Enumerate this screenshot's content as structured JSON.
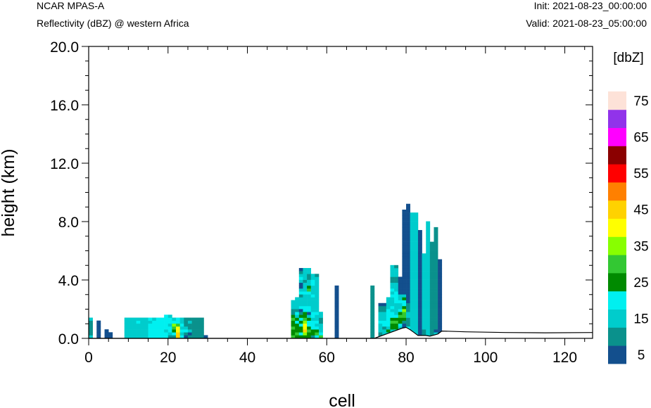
{
  "header": {
    "model": "NCAR MPAS-A",
    "field": "Reflectivity (dBZ) @ western Africa",
    "init": "Init: 2021-08-23_00:00:00",
    "valid": "Valid: 2021-08-23_05:00:00"
  },
  "chart_data": {
    "type": "heatmap",
    "xlabel": "cell",
    "ylabel": "height (km)",
    "xlim": [
      0,
      127
    ],
    "ylim": [
      0,
      20
    ],
    "x_ticks": [
      0,
      20,
      40,
      60,
      80,
      100,
      120
    ],
    "y_ticks": [
      0,
      4,
      8,
      12,
      16,
      20
    ],
    "x_tick_labels": [
      "0",
      "20",
      "40",
      "60",
      "80",
      "100",
      "120"
    ],
    "y_tick_labels": [
      "0.0",
      "4.0",
      "8.0",
      "12.0",
      "16.0",
      "20.0"
    ],
    "colorbar": {
      "title": "[dbZ]",
      "levels": [
        5,
        10,
        15,
        20,
        25,
        30,
        35,
        40,
        45,
        50,
        55,
        60,
        65,
        70,
        75
      ],
      "labels": [
        "5",
        "15",
        "25",
        "35",
        "45",
        "55",
        "65",
        "75"
      ],
      "colors": [
        "#134f8d",
        "#0a918c",
        "#00cccc",
        "#00f0f0",
        "#008a00",
        "#33c833",
        "#88ff00",
        "#ffff00",
        "#ffd200",
        "#ff8000",
        "#ff0000",
        "#8b0000",
        "#ff00ff",
        "#9133ea",
        "#fde2d8"
      ]
    },
    "columns": [
      {
        "x": 0,
        "z": [
          15,
          10,
          10,
          10,
          10,
          10,
          15
        ]
      },
      {
        "x": 2,
        "z": [
          5,
          5,
          5,
          5,
          5,
          5
        ]
      },
      {
        "x": 4,
        "z": [
          5,
          5,
          5
        ]
      },
      {
        "x": 5,
        "z": [
          5,
          5
        ]
      },
      {
        "x": 9,
        "z": [
          15,
          15,
          15,
          15,
          15,
          15,
          15
        ]
      },
      {
        "x": 10,
        "z": [
          15,
          15,
          15,
          15,
          15,
          15,
          15
        ]
      },
      {
        "x": 11,
        "z": [
          15,
          15,
          15,
          15,
          15,
          15,
          15
        ]
      },
      {
        "x": 12,
        "z": [
          15,
          15,
          15,
          15,
          15,
          20,
          15
        ]
      },
      {
        "x": 13,
        "z": [
          15,
          15,
          15,
          15,
          15,
          15,
          15
        ]
      },
      {
        "x": 14,
        "z": [
          15,
          15,
          15,
          15,
          15,
          15,
          15
        ]
      },
      {
        "x": 15,
        "z": [
          20,
          20,
          20,
          20,
          20,
          15,
          20
        ]
      },
      {
        "x": 16,
        "z": [
          20,
          20,
          20,
          20,
          20,
          20,
          15
        ]
      },
      {
        "x": 17,
        "z": [
          20,
          20,
          20,
          20,
          20,
          20,
          20
        ]
      },
      {
        "x": 18,
        "z": [
          20,
          20,
          20,
          20,
          20,
          20,
          20
        ]
      },
      {
        "x": 19,
        "z": [
          20,
          20,
          15,
          20,
          20,
          20,
          20,
          20
        ]
      },
      {
        "x": 20,
        "z": [
          10,
          15,
          20,
          20,
          15,
          20,
          20,
          15
        ]
      },
      {
        "x": 21,
        "z": [
          10,
          20,
          25,
          30,
          35,
          20,
          15
        ]
      },
      {
        "x": 22,
        "z": [
          45,
          45,
          40,
          40,
          30,
          20,
          20
        ]
      },
      {
        "x": 23,
        "z": [
          20,
          15,
          20,
          15,
          20,
          15,
          15
        ]
      },
      {
        "x": 24,
        "z": [
          5,
          10,
          20,
          15,
          10,
          10,
          10
        ]
      },
      {
        "x": 25,
        "z": [
          10,
          5,
          15,
          10,
          10,
          15,
          10
        ]
      },
      {
        "x": 26,
        "z": [
          10,
          10,
          10,
          10,
          10,
          10,
          10
        ]
      },
      {
        "x": 27,
        "z": [
          10,
          10,
          10,
          10,
          10,
          10,
          10
        ]
      },
      {
        "x": 28,
        "z": [
          10,
          10,
          10,
          10,
          10,
          10,
          10
        ]
      },
      {
        "x": 29,
        "z": [
          5
        ]
      },
      {
        "x": 51,
        "z": [
          30,
          25,
          25,
          30,
          25,
          25,
          30,
          25,
          10,
          10,
          15,
          15,
          15
        ]
      },
      {
        "x": 52,
        "z": [
          25,
          30,
          25,
          25,
          25,
          20,
          25,
          15,
          20,
          10,
          15,
          15,
          15,
          15
        ]
      },
      {
        "x": 53,
        "z": [
          25,
          20,
          25,
          25,
          20,
          25,
          20,
          25,
          10,
          5,
          20,
          15,
          15,
          15,
          10,
          20,
          15,
          5,
          5,
          15,
          20,
          15,
          10,
          5
        ]
      },
      {
        "x": 54,
        "z": [
          25,
          35,
          45,
          40,
          40,
          35,
          30,
          25,
          25,
          20,
          20,
          15,
          15,
          15,
          15,
          20,
          15,
          15,
          15,
          10,
          15,
          15,
          15,
          15
        ]
      },
      {
        "x": 55,
        "z": [
          25,
          25,
          30,
          25,
          20,
          20,
          25,
          15,
          5,
          20,
          20,
          15,
          15,
          15,
          15,
          20,
          30,
          25,
          15,
          15,
          10,
          10,
          15,
          15
        ]
      },
      {
        "x": 56,
        "z": [
          10,
          25,
          25,
          20,
          20,
          20,
          15,
          20,
          20,
          15,
          15,
          15,
          15,
          15,
          20,
          15,
          15,
          15,
          20,
          20,
          15,
          15
        ]
      },
      {
        "x": 57,
        "z": [
          20,
          30,
          25,
          20,
          15,
          20,
          15,
          15,
          20,
          15,
          15,
          15,
          15,
          15,
          15,
          15,
          15,
          15,
          15,
          15,
          15,
          10
        ]
      },
      {
        "x": 58,
        "z": [
          30,
          20,
          15,
          15,
          15,
          10,
          10,
          15,
          15
        ]
      },
      {
        "x": 62,
        "z": [
          5,
          5,
          5,
          5,
          5,
          5,
          5,
          5,
          5,
          5,
          5,
          5,
          5,
          5,
          5,
          5,
          5,
          5
        ]
      },
      {
        "x": 71,
        "z": [
          10,
          10,
          10,
          10,
          10,
          10,
          10,
          10,
          10,
          10,
          10,
          10,
          10,
          10,
          10,
          10,
          10,
          10
        ]
      },
      {
        "x": 73,
        "z": [
          10,
          10,
          15,
          15,
          15,
          20,
          15,
          15,
          15,
          10,
          10,
          5
        ]
      },
      {
        "x": 74,
        "z": [
          15,
          15,
          15,
          10,
          20,
          20,
          15,
          15,
          15,
          10,
          10,
          5
        ]
      },
      {
        "x": 75,
        "z": [
          15,
          20,
          25,
          15,
          20,
          20,
          20,
          20,
          20,
          20,
          15,
          15,
          15,
          15
        ]
      },
      {
        "x": 76,
        "z": [
          20,
          20,
          15,
          25,
          25,
          30,
          25,
          20,
          20,
          15,
          20,
          15,
          15,
          15,
          20,
          15,
          20,
          15,
          15,
          10,
          10,
          15,
          15,
          15,
          15
        ]
      },
      {
        "x": 77,
        "z": [
          20,
          20,
          20,
          25,
          25,
          30,
          25,
          20,
          15,
          15,
          15,
          15,
          20,
          20,
          20,
          20,
          15,
          15,
          15,
          10,
          10,
          15,
          15,
          15,
          10
        ]
      },
      {
        "x": 78,
        "z": [
          5,
          5,
          10,
          15,
          20,
          25,
          25,
          30,
          25,
          20,
          15,
          15,
          20,
          15,
          15,
          5,
          5,
          5,
          5,
          5,
          5
        ]
      },
      {
        "x": 79,
        "z": [
          5,
          5,
          5,
          5,
          5,
          10,
          25,
          30,
          30,
          35,
          25,
          20,
          20,
          25,
          15,
          5,
          5,
          5,
          5,
          5,
          5,
          5,
          5,
          5,
          5,
          5,
          5,
          5,
          5,
          5,
          5,
          5,
          5,
          5,
          5,
          5,
          5,
          5,
          5,
          5,
          5,
          5,
          5,
          5
        ]
      },
      {
        "x": 80,
        "z": [
          10,
          10,
          20,
          20,
          10,
          10,
          10,
          15,
          15,
          10,
          10,
          10,
          5,
          5,
          5,
          5,
          5,
          5,
          5,
          5,
          5,
          5,
          5,
          5,
          5,
          5,
          5,
          5,
          5,
          5,
          5,
          5,
          5,
          5,
          5,
          5,
          5,
          5,
          5,
          5,
          5,
          5,
          5,
          5,
          5,
          5
        ]
      },
      {
        "x": 81,
        "z": [
          15,
          15,
          15,
          15,
          15,
          15,
          15,
          15,
          15,
          15,
          15,
          15,
          15,
          15,
          15,
          15,
          15,
          15,
          15,
          15,
          15,
          15,
          15,
          15,
          15,
          15,
          15,
          15,
          15,
          15,
          15,
          15,
          15,
          15,
          15,
          15,
          15,
          15,
          15,
          15,
          15,
          15,
          15
        ]
      },
      {
        "x": 82,
        "z": [
          20,
          15,
          15,
          15,
          15,
          15,
          15,
          15,
          15,
          15,
          15,
          15,
          15,
          15,
          15,
          15,
          15,
          15,
          15,
          15,
          15,
          15,
          15,
          15,
          15,
          15,
          15,
          15,
          15,
          15,
          15,
          15,
          15,
          15,
          15,
          15,
          15,
          15,
          15,
          15,
          15,
          15,
          15
        ]
      },
      {
        "x": 83,
        "z": [
          5,
          5,
          5,
          5,
          5,
          5,
          5,
          5,
          5,
          5,
          5,
          5,
          5,
          5,
          5,
          5,
          5,
          5,
          5,
          5,
          5,
          5,
          5,
          5,
          5,
          5,
          5,
          5,
          5,
          5,
          5,
          5,
          5,
          5,
          5,
          5,
          5
        ]
      },
      {
        "x": 84,
        "z": [
          10,
          10,
          10,
          15,
          15,
          15,
          15,
          15,
          15,
          15,
          15,
          15,
          15,
          15,
          15,
          15,
          15,
          15,
          15,
          15,
          15,
          15,
          15,
          15,
          15,
          15,
          15,
          15,
          15
        ]
      },
      {
        "x": 85,
        "z": [
          15,
          15,
          15,
          15,
          15,
          15,
          15,
          15,
          15,
          15,
          15,
          15,
          15,
          15,
          15,
          15,
          15,
          15,
          15,
          15,
          15,
          15,
          15,
          15,
          15,
          15,
          15,
          15,
          15,
          15,
          15,
          15,
          15,
          15,
          15,
          15,
          15,
          15,
          15,
          15
        ]
      },
      {
        "x": 86,
        "z": [
          10,
          10,
          10,
          10,
          10,
          10,
          10,
          10,
          10,
          10,
          10,
          10,
          10,
          10,
          10,
          10,
          10,
          10,
          10,
          10,
          10,
          10,
          10,
          10,
          10,
          10,
          10,
          10,
          10,
          10,
          10,
          10,
          10
        ]
      },
      {
        "x": 87,
        "z": [
          15,
          15,
          5,
          10,
          10,
          10,
          10,
          10,
          10,
          10,
          10,
          10,
          10,
          10,
          10,
          10,
          10,
          10,
          10,
          10,
          10,
          10,
          10,
          10,
          10,
          10,
          10,
          10,
          10,
          10,
          10,
          10,
          10,
          10,
          10,
          10,
          10,
          10
        ]
      },
      {
        "x": 88,
        "z": [
          5,
          5,
          5,
          5,
          5,
          5,
          5,
          5,
          5,
          5,
          5,
          5,
          5,
          5,
          5,
          5,
          5,
          5,
          5,
          5,
          5,
          5,
          5,
          5,
          5,
          5,
          5
        ]
      }
    ],
    "terrain": [
      [
        0,
        0.0
      ],
      [
        72,
        0.0
      ],
      [
        75,
        0.3
      ],
      [
        79,
        0.7
      ],
      [
        80,
        0.75
      ],
      [
        81,
        0.6
      ],
      [
        82,
        0.4
      ],
      [
        83,
        0.2
      ],
      [
        85,
        0.2
      ],
      [
        86,
        0.15
      ],
      [
        88,
        0.3
      ],
      [
        89,
        0.5
      ],
      [
        95,
        0.45
      ],
      [
        105,
        0.4
      ],
      [
        115,
        0.38
      ],
      [
        127,
        0.4
      ]
    ]
  }
}
